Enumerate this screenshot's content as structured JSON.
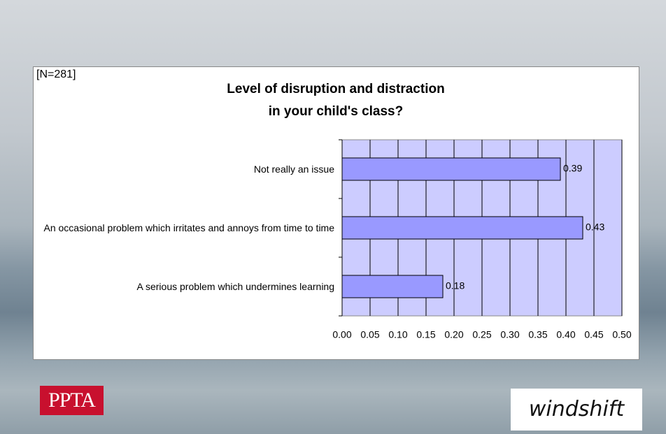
{
  "chart_data": {
    "type": "barh",
    "annotation": "[N=281]",
    "title": [
      "Level of disruption and distraction",
      "in your child's class?"
    ],
    "categories": [
      "Not really an issue",
      "An occasional problem which irritates and annoys from time to time",
      "A serious problem which undermines learning"
    ],
    "values": [
      0.39,
      0.43,
      0.18
    ],
    "color": "#9999ff",
    "plot_background": "#ccccff",
    "xlim": [
      0,
      0.5
    ],
    "xticks": [
      {
        "value": 0,
        "label": "0.00"
      },
      0.05,
      {
        "value": 0.1,
        "label": "0.10"
      },
      0.15,
      {
        "value": 0.2,
        "label": "0.20"
      },
      0.25,
      {
        "value": 0.3,
        "label": "0.30"
      },
      0.35,
      {
        "value": 0.4,
        "label": "0.40"
      },
      0.45,
      {
        "value": 0.5,
        "label": "0.50"
      }
    ],
    "grid": true
  },
  "logos": [
    "PPTA",
    "windshift"
  ]
}
